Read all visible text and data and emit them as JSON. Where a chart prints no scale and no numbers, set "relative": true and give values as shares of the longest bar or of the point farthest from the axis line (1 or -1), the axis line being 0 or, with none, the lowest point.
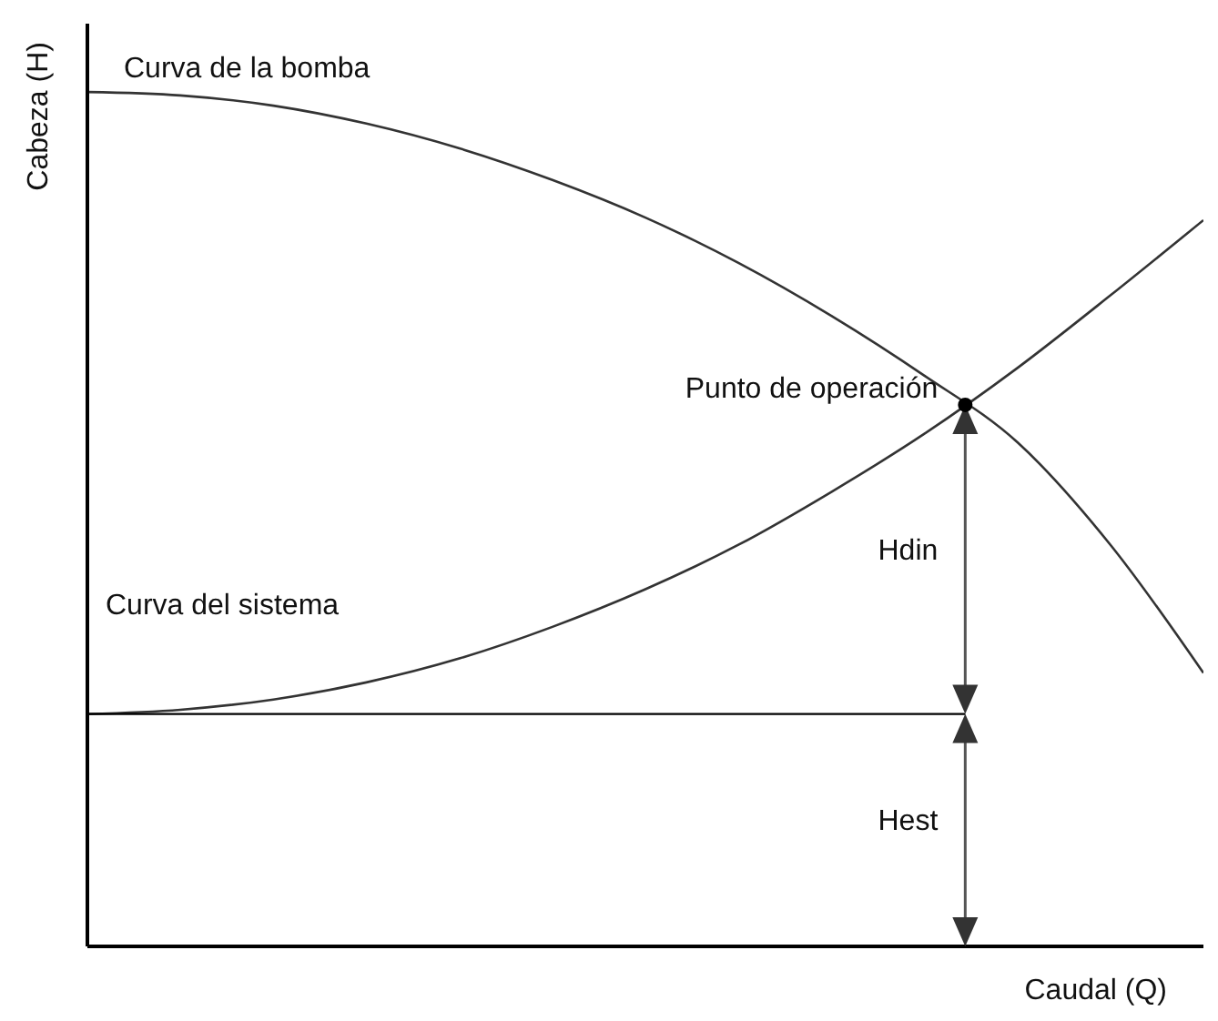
{
  "chart_data": {
    "type": "line",
    "relative": true,
    "xlabel": "Caudal (Q)",
    "ylabel": "Cabeza (H)",
    "categories": [
      null,
      null,
      null,
      null,
      null,
      null,
      null,
      null,
      null,
      null,
      null,
      null,
      null
    ],
    "series": [
      {
        "name": "Curva de la bomba",
        "color": "#333333",
        "values": [
          1.0,
          0.996,
          0.984,
          0.963,
          0.934,
          0.897,
          0.853,
          0.8,
          0.738,
          0.668,
          0.59,
          0.47,
          0.32
        ]
      },
      {
        "name": "Curva del sistema",
        "color": "#333333",
        "values": [
          0.272,
          0.277,
          0.289,
          0.309,
          0.337,
          0.374,
          0.418,
          0.47,
          0.532,
          0.6,
          0.677,
          0.762,
          0.85
        ]
      }
    ],
    "ref_lines": [
      {
        "axis": "y",
        "value": 0.272,
        "color": "#000000"
      }
    ],
    "annotations": [
      "Punto de operación",
      "Hdin",
      "Hest"
    ],
    "marker": "none",
    "line_style": "solid"
  }
}
